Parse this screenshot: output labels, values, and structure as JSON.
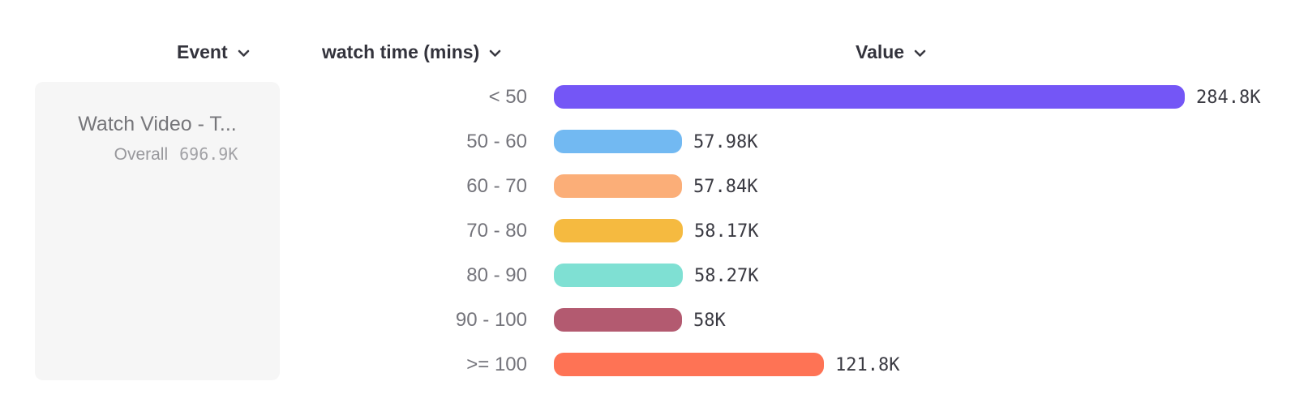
{
  "header": {
    "event_label": "Event",
    "breakdown_label": "watch time (mins)",
    "value_label": "Value"
  },
  "event_card": {
    "title": "Watch Video - T...",
    "overall_label": "Overall",
    "overall_value": "696.9K"
  },
  "chart_data": {
    "type": "bar",
    "orientation": "horizontal",
    "title": "",
    "xlabel": "Value",
    "ylabel": "watch time (mins)",
    "categories": [
      "< 50",
      "50 - 60",
      "60 - 70",
      "70 - 80",
      "80 - 90",
      "90 - 100",
      ">= 100"
    ],
    "values": [
      284800,
      57980,
      57840,
      58170,
      58270,
      58000,
      121800
    ],
    "display_values": [
      "284.8K",
      "57.98K",
      "57.84K",
      "58.17K",
      "58.27K",
      "58K",
      "121.8K"
    ],
    "bar_colors": [
      "#7456F6",
      "#72B9F2",
      "#FBAE78",
      "#F5BA40",
      "#7FE0D3",
      "#B35A70",
      "#FE7355"
    ],
    "xlim": [
      0,
      284800
    ],
    "grid": false,
    "legend": false
  },
  "colors": {
    "card_background": "#f6f6f6",
    "header_text": "#33333c",
    "category_text": "#74747b",
    "value_text": "#3a3a42"
  }
}
